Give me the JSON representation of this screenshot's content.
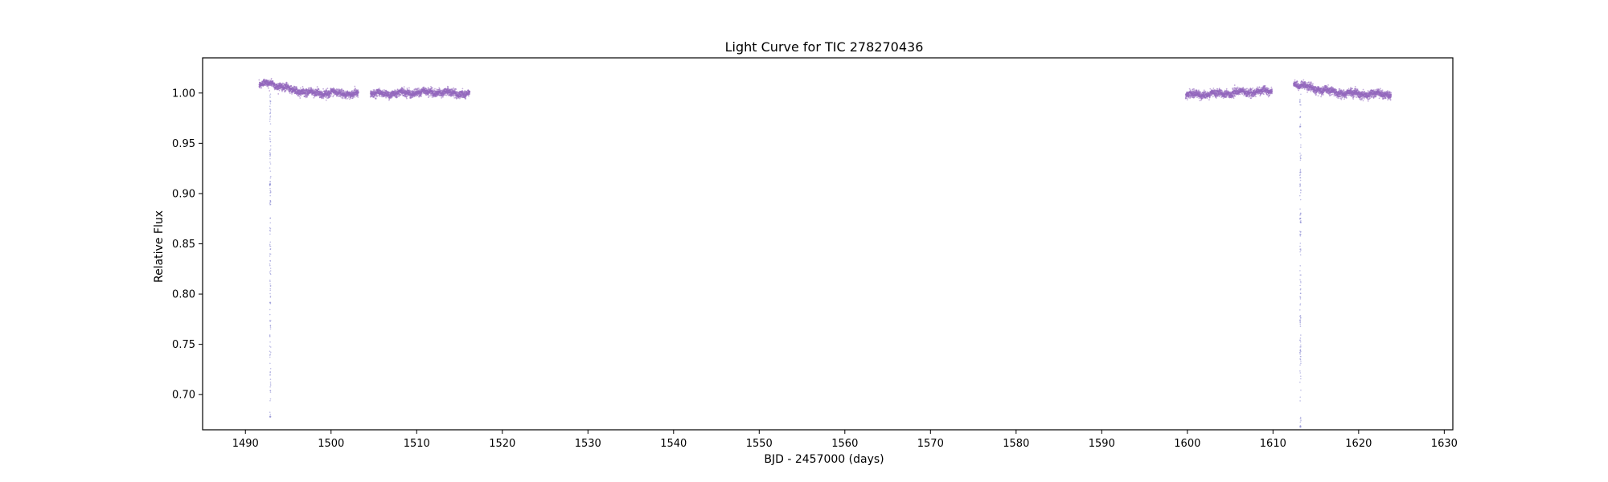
{
  "chart_data": {
    "type": "scatter",
    "title": "Light Curve for TIC 278270436",
    "xlabel": "BJD - 2457000 (days)",
    "ylabel": "Relative Flux",
    "xlim": [
      1485,
      1631
    ],
    "ylim": [
      0.665,
      1.035
    ],
    "x_ticks": [
      "1490",
      "1500",
      "1510",
      "1520",
      "1530",
      "1540",
      "1550",
      "1560",
      "1570",
      "1580",
      "1590",
      "1600",
      "1610",
      "1620",
      "1630"
    ],
    "y_ticks": [
      "0.70",
      "0.75",
      "0.80",
      "0.85",
      "0.90",
      "0.95",
      "1.00"
    ],
    "grid": false,
    "legend": "none",
    "marker_color": "#9467bd",
    "dip_marker_color": "#7070c8",
    "segments": [
      {
        "x_start": 1491.6,
        "x_end": 1503.2,
        "trend": [
          [
            1491.6,
            1.008
          ],
          [
            1493.0,
            1.01
          ],
          [
            1495.0,
            1.004
          ],
          [
            1497.5,
            1.0
          ],
          [
            1500.0,
            1.0
          ],
          [
            1503.2,
            0.999
          ]
        ],
        "scatter": 0.004
      },
      {
        "x_start": 1504.6,
        "x_end": 1516.2,
        "trend": [
          [
            1504.6,
            0.999
          ],
          [
            1508.0,
            1.0
          ],
          [
            1512.0,
            1.001
          ],
          [
            1516.2,
            0.999
          ]
        ],
        "scatter": 0.004
      },
      {
        "x_start": 1599.8,
        "x_end": 1609.9,
        "trend": [
          [
            1599.8,
            0.998
          ],
          [
            1605.0,
            1.0
          ],
          [
            1609.9,
            1.002
          ]
        ],
        "scatter": 0.004
      },
      {
        "x_start": 1612.4,
        "x_end": 1623.8,
        "trend": [
          [
            1612.4,
            1.009
          ],
          [
            1614.5,
            1.005
          ],
          [
            1617.0,
            1.001
          ],
          [
            1620.0,
            0.999
          ],
          [
            1623.8,
            0.999
          ]
        ],
        "scatter": 0.004
      }
    ],
    "transits": [
      {
        "x_center": 1492.9,
        "min_flux": 0.678
      },
      {
        "x_center": 1613.2,
        "min_flux": 0.668
      }
    ]
  }
}
